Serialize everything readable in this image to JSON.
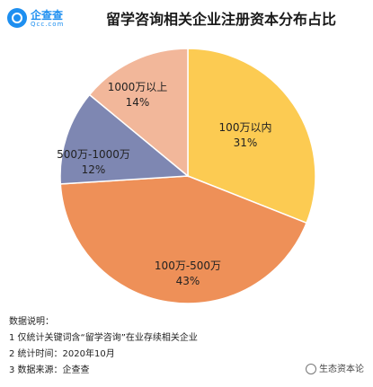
{
  "logo": {
    "name": "企查查",
    "domain": "Qcc.com"
  },
  "colors": {
    "logo": "#1e8ff0",
    "outline": "#ffffff"
  },
  "chart_data": {
    "type": "pie",
    "title": "留学咨询相关企业注册资本分布占比",
    "slices": [
      {
        "label": "100万以内",
        "percent": "31%",
        "value": 31,
        "color": "#fccb52"
      },
      {
        "label": "100万-500万",
        "percent": "43%",
        "value": 43,
        "color": "#ee9058"
      },
      {
        "label": "500万-1000万",
        "percent": "12%",
        "value": 12,
        "color": "#7e87b2"
      },
      {
        "label": "1000万以上",
        "percent": "14%",
        "value": 14,
        "color": "#f2b79a"
      }
    ]
  },
  "notes": {
    "heading": "数据说明：",
    "lines": [
      "1 仅统计关键词含“留学咨询”在业存续相关企业",
      "2 统计时间：2020年10月",
      "3 数据来源：企查查"
    ]
  },
  "watermark": "生态资本论"
}
